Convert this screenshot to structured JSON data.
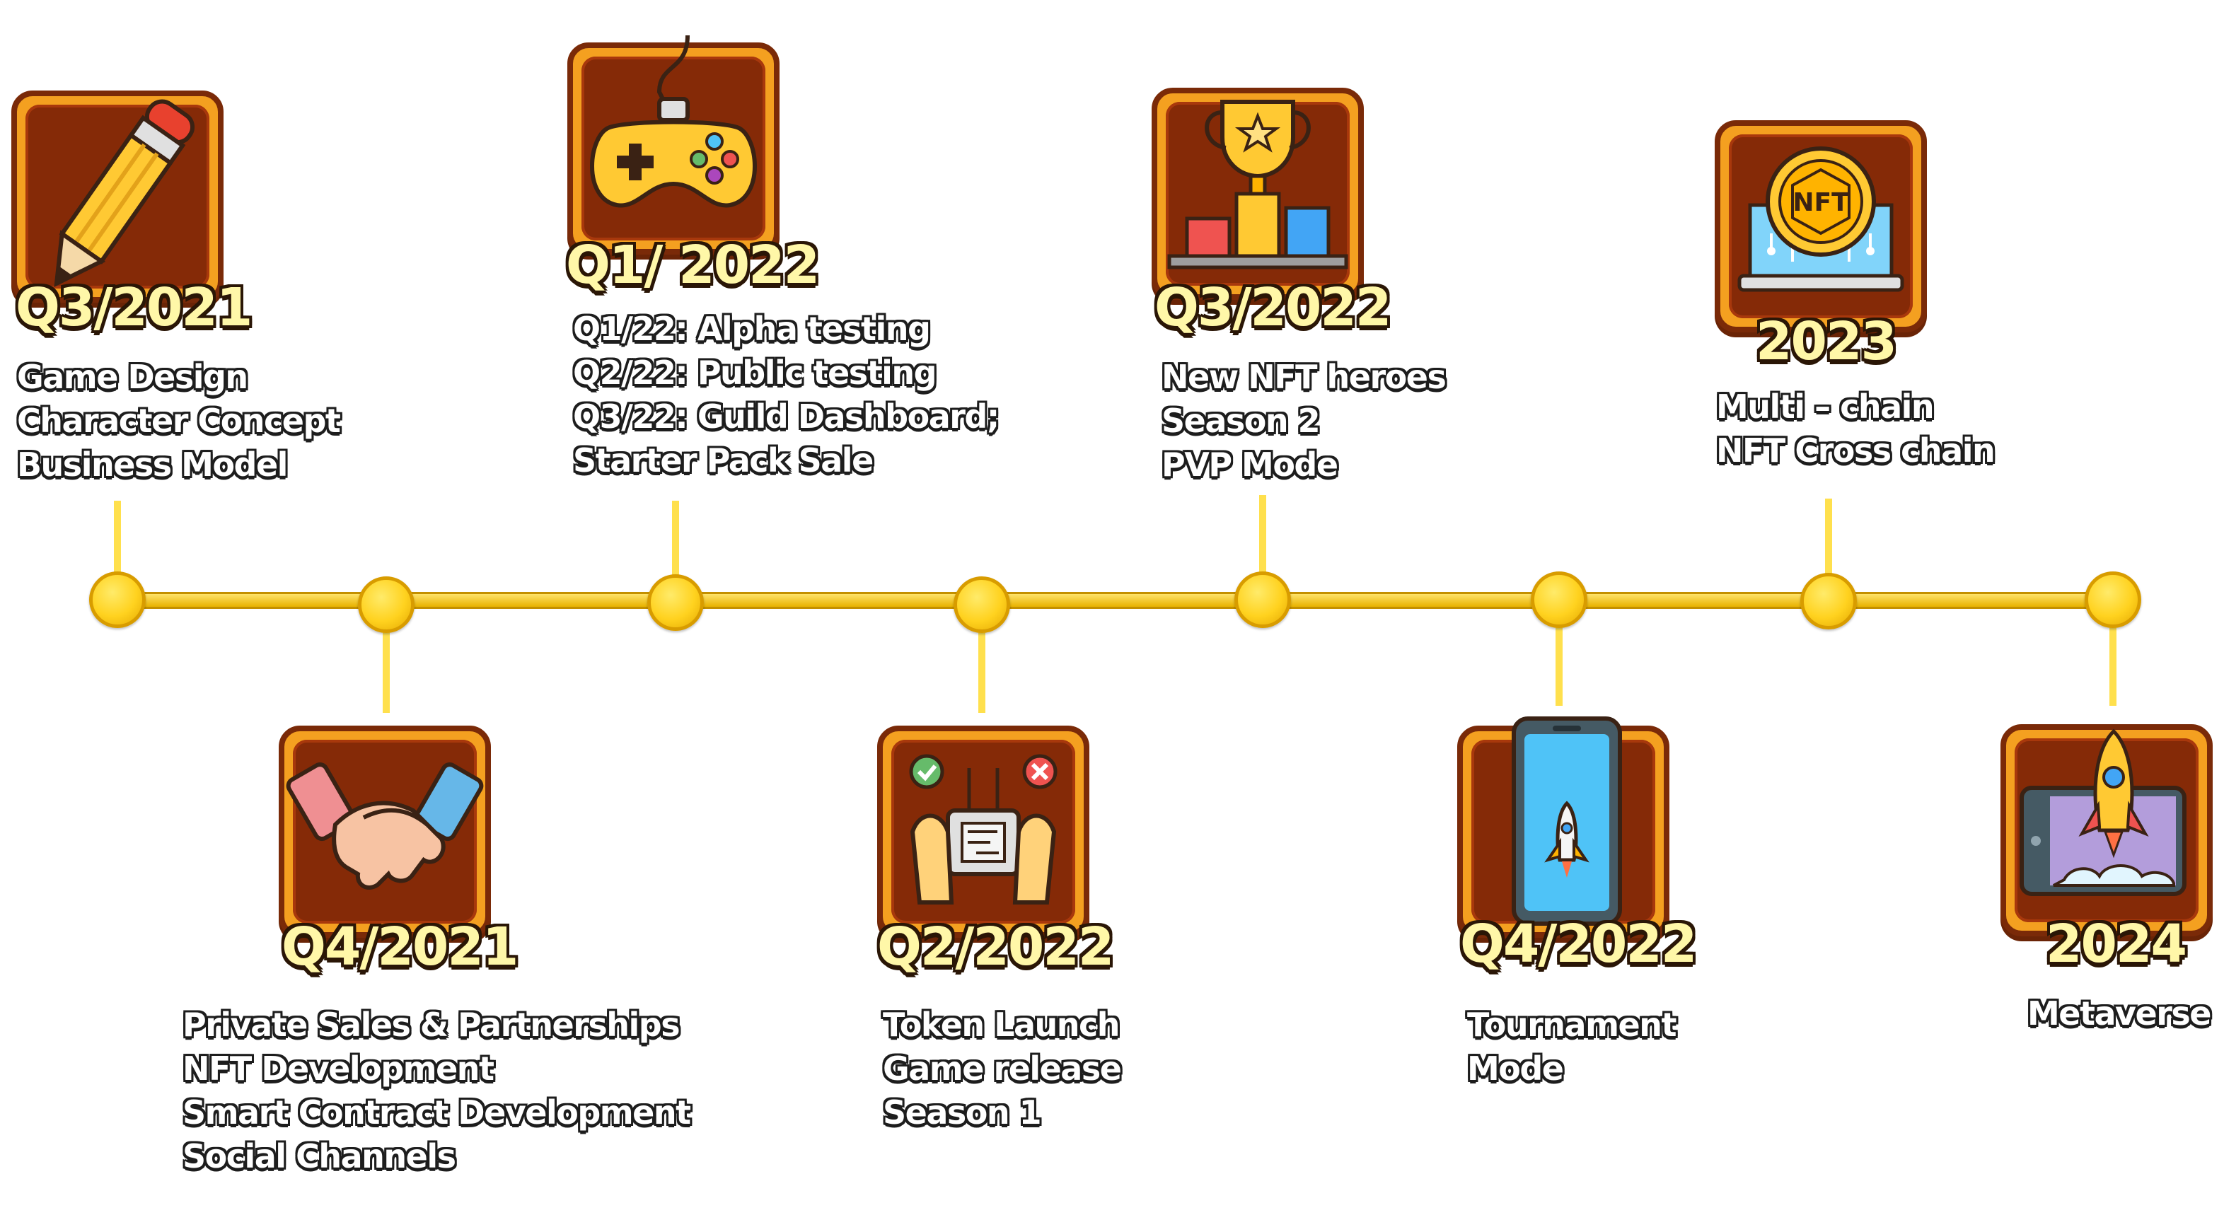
{
  "milestones": [
    {
      "period": "Q3/2021",
      "icon": "pencil-icon",
      "items": [
        "Game Design",
        "Character Concept",
        "Business Model"
      ]
    },
    {
      "period": "Q4/2021",
      "icon": "handshake-icon",
      "items": [
        "Private Sales & Partnerships",
        "NFT Development",
        "Smart Contract Development",
        "Social Channels"
      ]
    },
    {
      "period": "Q1/ 2022",
      "icon": "gamepad-icon",
      "items": [
        "Q1/22: Alpha testing",
        "Q2/22: Public testing",
        "Q3/22: Guild Dashboard;",
        "Starter Pack Sale"
      ]
    },
    {
      "period": "Q2/2022",
      "icon": "controller-hands-icon",
      "items": [
        "Token Launch",
        "Game release",
        "Season 1"
      ]
    },
    {
      "period": "Q3/2022",
      "icon": "trophy-podium-icon",
      "items": [
        "New NFT heroes",
        "Season 2",
        "PVP Mode"
      ]
    },
    {
      "period": "Q4/2022",
      "icon": "mobile-rocket-icon",
      "items": [
        "Tournament",
        "Mode"
      ]
    },
    {
      "period": "2023",
      "icon": "nft-chip-icon",
      "items": [
        "Multi – chain",
        "NFT Cross chain"
      ]
    },
    {
      "period": "2024",
      "icon": "rocket-launch-icon",
      "items": [
        "Metaverse"
      ]
    }
  ],
  "colors": {
    "tile_frame": "#f4a020",
    "tile_inner": "#852a07",
    "timeline": "#ffd21f",
    "label_fill": "#fff7a8",
    "text_fill": "#ffffff",
    "outline": "#2a1606"
  }
}
